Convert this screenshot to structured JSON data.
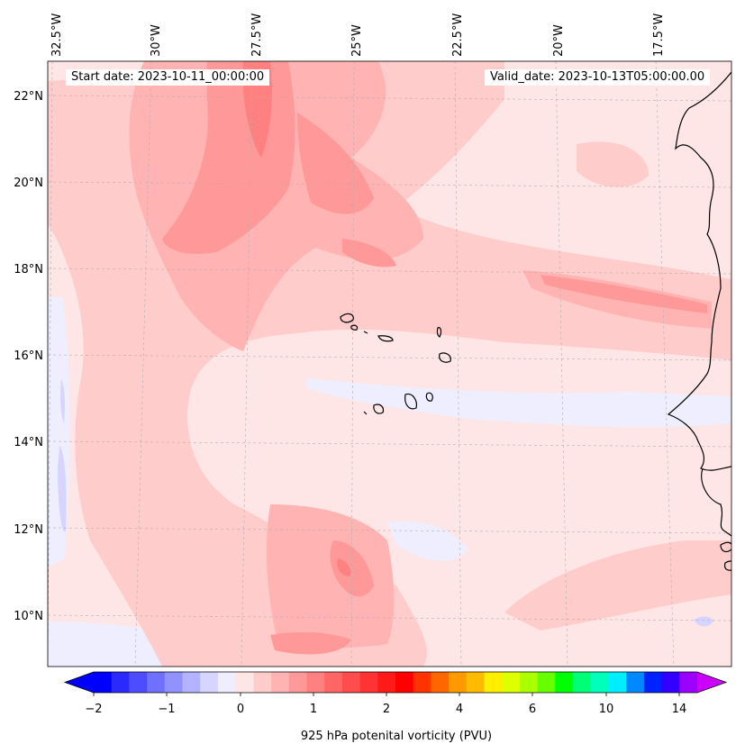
{
  "header": {
    "start_date": "Start date: 2023-10-11_00:00:00",
    "valid_date": "Valid_date: 2023-10-13T05:00:00.00"
  },
  "map": {
    "longitude_labels": [
      "32.5°W",
      "30°W",
      "27.5°W",
      "25°W",
      "22.5°W",
      "20°W",
      "17.5°W"
    ],
    "latitude_labels": [
      "22°N",
      "20°N",
      "18°N",
      "16°N",
      "14°N",
      "12°N",
      "10°N"
    ],
    "extent": {
      "lon_min": -32.6,
      "lon_max": -15.8,
      "lat_min": 9.0,
      "lat_max": 22.8
    }
  },
  "colorbar": {
    "title": "925 hPa potenital vorticity (PVU)",
    "tick_labels": [
      "−2",
      "−1",
      "0",
      "1",
      "2",
      "4",
      "6",
      "10",
      "14"
    ],
    "colors": [
      "#0000ff",
      "#2a2aff",
      "#4d4dff",
      "#7070ff",
      "#9191ff",
      "#b3b3ff",
      "#d5d5ff",
      "#eeeeff",
      "#ffe6e6",
      "#ffcccc",
      "#ffb3b3",
      "#ff9999",
      "#ff8080",
      "#ff6666",
      "#ff4d4d",
      "#ff3333",
      "#ff1a1a",
      "#ff0000",
      "#ff3300",
      "#ff6600",
      "#ff9900",
      "#ffbb00",
      "#ffee00",
      "#ddff00",
      "#aaff00",
      "#66ff00",
      "#00ff00",
      "#00ff77",
      "#00ffbb",
      "#00eeff",
      "#0088ff",
      "#0022ff",
      "#3300ff",
      "#9900ff"
    ],
    "under_color": "#0000ff",
    "over_color": "#cc00ff"
  }
}
